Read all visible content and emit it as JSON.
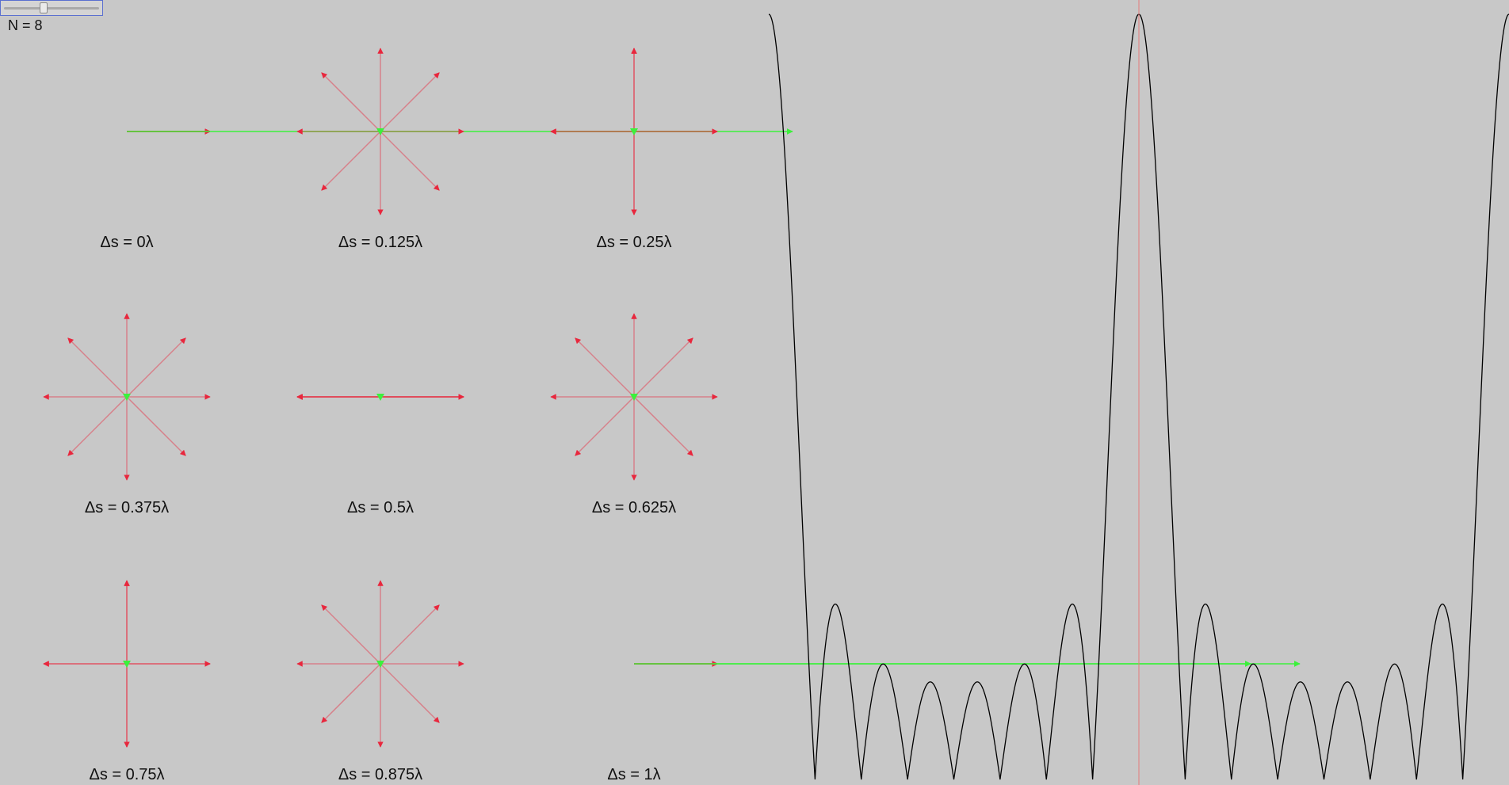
{
  "slider": {
    "value": 8,
    "min": 1,
    "max": 32
  },
  "n_label": "N = 8",
  "colors": {
    "background": "#c8c8c8",
    "phasor": "#e8273d",
    "resultant": "#3cf03c",
    "curve": "#000000",
    "center_line": "#e57a7a",
    "slider_border": "#5a6fd0"
  },
  "cells": [
    {
      "label": "Δs = 0λ",
      "delta_s": 0
    },
    {
      "label": "Δs = 0.125λ",
      "delta_s": 0.125
    },
    {
      "label": "Δs = 0.25λ",
      "delta_s": 0.25
    },
    {
      "label": "Δs = 0.375λ",
      "delta_s": 0.375
    },
    {
      "label": "Δs = 0.5λ",
      "delta_s": 0.5
    },
    {
      "label": "Δs = 0.625λ",
      "delta_s": 0.625
    },
    {
      "label": "Δs = 0.75λ",
      "delta_s": 0.75
    },
    {
      "label": "Δs = 0.875λ",
      "delta_s": 0.875
    },
    {
      "label": "Δs = 1λ",
      "delta_s": 1
    }
  ],
  "chart_data": {
    "type": "line",
    "title": "",
    "xlabel": "",
    "ylabel": "",
    "x_range": [
      -1,
      1
    ],
    "function": "|sin(N·π·x) / sin(π·x)|",
    "N": 8,
    "center_line_x": 0
  }
}
